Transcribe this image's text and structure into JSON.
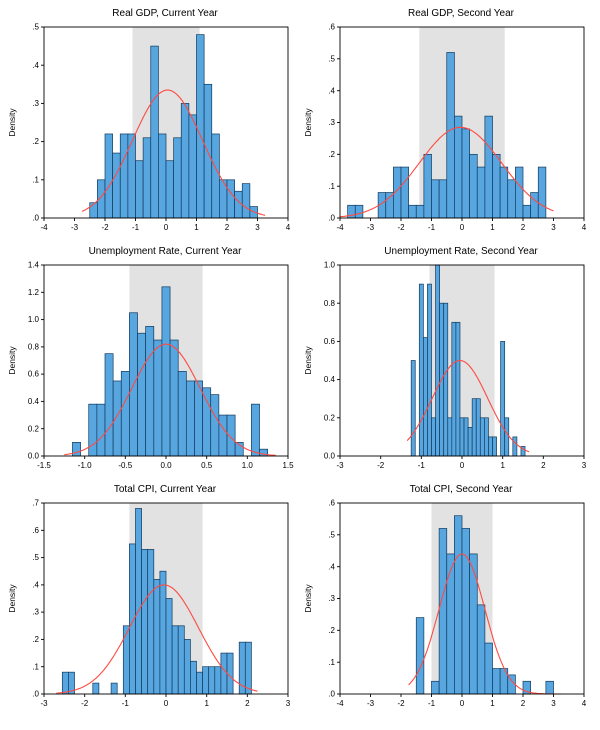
{
  "colors": {
    "background": "#ffffff",
    "bar_fill": "#58a6e0",
    "bar_edge": "#123a5c",
    "curve": "#ff4a42",
    "band": "#e2e2e2",
    "frame": "#000000",
    "text": "#000000"
  },
  "chart_data": [
    {
      "type": "bar",
      "subtype": "histogram-with-normal-curve",
      "title": "Real GDP, Current Year",
      "ylabel": "Density",
      "xlim": [
        -4,
        4
      ],
      "ylim": [
        0,
        0.5
      ],
      "xticks": [
        -4,
        -3,
        -2,
        -1,
        0,
        1,
        2,
        3,
        4
      ],
      "xtick_labels": [
        "-4",
        "-3",
        "-2",
        "-1",
        "0",
        "1",
        "2",
        "3",
        "4"
      ],
      "yticks": [
        0,
        0.1,
        0.2,
        0.3,
        0.4,
        0.5
      ],
      "ytick_labels": [
        ".0",
        ".1",
        ".2",
        ".3",
        ".4",
        ".5"
      ],
      "band": [
        -1.1,
        1.1
      ],
      "bin_width": 0.25,
      "bars": [
        [
          -2.5,
          0.04
        ],
        [
          -2.25,
          0.1
        ],
        [
          -2,
          0.22
        ],
        [
          -1.75,
          0.17
        ],
        [
          -1.5,
          0.22
        ],
        [
          -1.25,
          0.22
        ],
        [
          -1,
          0.15
        ],
        [
          -0.75,
          0.21
        ],
        [
          -0.5,
          0.45
        ],
        [
          -0.25,
          0.22
        ],
        [
          0,
          0.15
        ],
        [
          0.25,
          0.21
        ],
        [
          0.5,
          0.3
        ],
        [
          0.75,
          0.27
        ],
        [
          1,
          0.48
        ],
        [
          1.25,
          0.35
        ],
        [
          1.5,
          0.22
        ],
        [
          1.75,
          0.1
        ],
        [
          2,
          0.1
        ],
        [
          2.25,
          0.07
        ],
        [
          2.5,
          0.09
        ],
        [
          2.75,
          0.03
        ]
      ],
      "curve": {
        "mean": 0.05,
        "sd": 1.15,
        "peak": 0.335
      }
    },
    {
      "type": "bar",
      "subtype": "histogram-with-normal-curve",
      "title": "Real GDP, Second Year",
      "ylabel": "Density",
      "xlim": [
        -4,
        4
      ],
      "ylim": [
        0,
        0.6
      ],
      "xticks": [
        -4,
        -3,
        -2,
        -1,
        0,
        1,
        2,
        3,
        4
      ],
      "xtick_labels": [
        "-4",
        "-3",
        "-2",
        "-1",
        "0",
        "1",
        "2",
        "3",
        "4"
      ],
      "yticks": [
        0,
        0.1,
        0.2,
        0.3,
        0.4,
        0.5,
        0.6
      ],
      "ytick_labels": [
        ".0",
        ".1",
        ".2",
        ".3",
        ".4",
        ".5",
        ".6"
      ],
      "band": [
        -1.4,
        1.4
      ],
      "bin_width": 0.25,
      "bars": [
        [
          -3.75,
          0.04
        ],
        [
          -3.5,
          0.04
        ],
        [
          -2.75,
          0.08
        ],
        [
          -2.5,
          0.08
        ],
        [
          -2.25,
          0.16
        ],
        [
          -2,
          0.16
        ],
        [
          -1.75,
          0.04
        ],
        [
          -1.5,
          0.04
        ],
        [
          -1.25,
          0.2
        ],
        [
          -1,
          0.12
        ],
        [
          -0.75,
          0.12
        ],
        [
          -0.5,
          0.52
        ],
        [
          -0.25,
          0.32
        ],
        [
          0,
          0.28
        ],
        [
          0.25,
          0.2
        ],
        [
          0.5,
          0.16
        ],
        [
          0.75,
          0.32
        ],
        [
          1,
          0.2
        ],
        [
          1.25,
          0.16
        ],
        [
          1.5,
          0.12
        ],
        [
          1.75,
          0.16
        ],
        [
          2,
          0.04
        ],
        [
          2.25,
          0.08
        ],
        [
          2.5,
          0.16
        ]
      ],
      "curve": {
        "mean": -0.05,
        "sd": 1.35,
        "peak": 0.285
      }
    },
    {
      "type": "bar",
      "subtype": "histogram-with-normal-curve",
      "title": "Unemployment Rate, Current Year",
      "ylabel": "Density",
      "xlim": [
        -1.5,
        1.5
      ],
      "ylim": [
        0,
        1.4
      ],
      "xticks": [
        -1.5,
        -1.0,
        -0.5,
        0.0,
        0.5,
        1.0,
        1.5
      ],
      "xtick_labels": [
        "-1.5",
        "-1.0",
        "-0.5",
        "0.0",
        "0.5",
        "1.0",
        "1.5"
      ],
      "yticks": [
        0,
        0.2,
        0.4,
        0.6,
        0.8,
        1.0,
        1.2,
        1.4
      ],
      "ytick_labels": [
        "0.0",
        "0.2",
        "0.4",
        "0.6",
        "0.8",
        "1.0",
        "1.2",
        "1.4"
      ],
      "band": [
        -0.45,
        0.45
      ],
      "bin_width": 0.1,
      "bars": [
        [
          -1.15,
          0.1
        ],
        [
          -0.95,
          0.38
        ],
        [
          -0.85,
          0.38
        ],
        [
          -0.75,
          0.75
        ],
        [
          -0.65,
          0.55
        ],
        [
          -0.55,
          0.62
        ],
        [
          -0.45,
          1.05
        ],
        [
          -0.35,
          0.9
        ],
        [
          -0.25,
          0.95
        ],
        [
          -0.15,
          0.85
        ],
        [
          -0.05,
          1.24
        ],
        [
          0.05,
          0.85
        ],
        [
          0.15,
          0.62
        ],
        [
          0.25,
          0.55
        ],
        [
          0.35,
          0.55
        ],
        [
          0.45,
          0.5
        ],
        [
          0.55,
          0.45
        ],
        [
          0.65,
          0.3
        ],
        [
          0.75,
          0.3
        ],
        [
          0.85,
          0.1
        ],
        [
          1.05,
          0.38
        ],
        [
          1.15,
          0.05
        ]
      ],
      "curve": {
        "mean": 0.0,
        "sd": 0.42,
        "peak": 0.82
      }
    },
    {
      "type": "bar",
      "subtype": "histogram-with-normal-curve",
      "title": "Unemployment Rate, Second Year",
      "ylabel": "Density",
      "xlim": [
        -3,
        3
      ],
      "ylim": [
        0,
        1.0
      ],
      "xticks": [
        -3,
        -2,
        -1,
        0,
        1,
        2,
        3
      ],
      "xtick_labels": [
        "-3",
        "-2",
        "-1",
        "0",
        "1",
        "2",
        "3"
      ],
      "yticks": [
        0,
        0.2,
        0.4,
        0.6,
        0.8,
        1.0
      ],
      "ytick_labels": [
        "0.0",
        "0.2",
        "0.4",
        "0.6",
        "0.8",
        "1.0"
      ],
      "band": [
        -0.8,
        0.8
      ],
      "bin_width": 0.1,
      "bars": [
        [
          -1.25,
          0.5
        ],
        [
          -1.05,
          0.9
        ],
        [
          -0.95,
          0.62
        ],
        [
          -0.85,
          0.9
        ],
        [
          -0.75,
          0.2
        ],
        [
          -0.65,
          1.0
        ],
        [
          -0.55,
          0.8
        ],
        [
          -0.45,
          0.8
        ],
        [
          -0.35,
          0.2
        ],
        [
          -0.25,
          0.7
        ],
        [
          -0.15,
          0.7
        ],
        [
          -0.05,
          0.2
        ],
        [
          0.05,
          0.2
        ],
        [
          0.15,
          0.15
        ],
        [
          0.25,
          0.3
        ],
        [
          0.35,
          0.3
        ],
        [
          0.45,
          0.2
        ],
        [
          0.55,
          0.2
        ],
        [
          0.65,
          0.1
        ],
        [
          0.75,
          0.1
        ],
        [
          0.95,
          0.6
        ],
        [
          1.05,
          0.2
        ],
        [
          1.25,
          0.1
        ],
        [
          1.45,
          0.05
        ]
      ],
      "curve": {
        "mean": -0.05,
        "sd": 0.68,
        "peak": 0.5
      }
    },
    {
      "type": "bar",
      "subtype": "histogram-with-normal-curve",
      "title": "Total CPI, Current Year",
      "ylabel": "Density",
      "xlim": [
        -3,
        3
      ],
      "ylim": [
        0,
        0.7
      ],
      "xticks": [
        -3,
        -2,
        -1,
        0,
        1,
        2,
        3
      ],
      "xtick_labels": [
        "-3",
        "-2",
        "-1",
        "0",
        "1",
        "2",
        "3"
      ],
      "yticks": [
        0,
        0.1,
        0.2,
        0.3,
        0.4,
        0.5,
        0.6,
        0.7
      ],
      "ytick_labels": [
        ".0",
        ".1",
        ".2",
        ".3",
        ".4",
        ".5",
        ".6",
        ".7"
      ],
      "band": [
        -0.9,
        0.9
      ],
      "bin_width": 0.15,
      "bars": [
        [
          -2.55,
          0.08
        ],
        [
          -2.4,
          0.08
        ],
        [
          -1.8,
          0.04
        ],
        [
          -1.35,
          0.04
        ],
        [
          -1.05,
          0.25
        ],
        [
          -0.9,
          0.55
        ],
        [
          -0.75,
          0.68
        ],
        [
          -0.6,
          0.53
        ],
        [
          -0.45,
          0.53
        ],
        [
          -0.3,
          0.42
        ],
        [
          -0.15,
          0.45
        ],
        [
          0,
          0.35
        ],
        [
          0.15,
          0.25
        ],
        [
          0.3,
          0.25
        ],
        [
          0.45,
          0.2
        ],
        [
          0.6,
          0.12
        ],
        [
          0.75,
          0.08
        ],
        [
          0.9,
          0.1
        ],
        [
          1.05,
          0.1
        ],
        [
          1.2,
          0.1
        ],
        [
          1.35,
          0.15
        ],
        [
          1.5,
          0.15
        ],
        [
          1.8,
          0.19
        ],
        [
          1.95,
          0.19
        ]
      ],
      "curve": {
        "mean": -0.05,
        "sd": 0.85,
        "peak": 0.4
      }
    },
    {
      "type": "bar",
      "subtype": "histogram-with-normal-curve",
      "title": "Total CPI, Second Year",
      "ylabel": "Density",
      "xlim": [
        -4,
        4
      ],
      "ylim": [
        0,
        0.6
      ],
      "xticks": [
        -4,
        -3,
        -2,
        -1,
        0,
        1,
        2,
        3,
        4
      ],
      "xtick_labels": [
        "-4",
        "-3",
        "-2",
        "-1",
        "0",
        "1",
        "2",
        "3",
        "4"
      ],
      "yticks": [
        0,
        0.1,
        0.2,
        0.3,
        0.4,
        0.5,
        0.6
      ],
      "ytick_labels": [
        ".0",
        ".1",
        ".2",
        ".3",
        ".4",
        ".5",
        ".6"
      ],
      "band": [
        -1.0,
        1.0
      ],
      "bin_width": 0.25,
      "bars": [
        [
          -1.5,
          0.24
        ],
        [
          -1,
          0.04
        ],
        [
          -0.75,
          0.52
        ],
        [
          -0.5,
          0.44
        ],
        [
          -0.25,
          0.56
        ],
        [
          0,
          0.52
        ],
        [
          0.25,
          0.44
        ],
        [
          0.5,
          0.28
        ],
        [
          0.75,
          0.16
        ],
        [
          1,
          0.08
        ],
        [
          1.25,
          0.08
        ],
        [
          1.5,
          0.06
        ],
        [
          2,
          0.04
        ],
        [
          2.75,
          0.04
        ]
      ],
      "curve": {
        "mean": 0.0,
        "sd": 0.75,
        "peak": 0.44
      }
    }
  ]
}
